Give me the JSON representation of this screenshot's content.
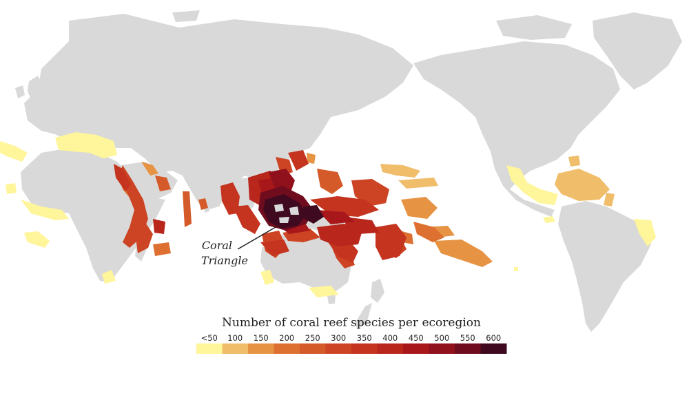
{
  "legend": {
    "title": "Number of coral reef species per ecoregion",
    "labels": [
      "<50",
      "100",
      "150",
      "200",
      "250",
      "300",
      "350",
      "400",
      "450",
      "500",
      "550",
      "600"
    ],
    "colors": [
      "#fff59a",
      "#f0bd6a",
      "#e69344",
      "#dd7030",
      "#d55a29",
      "#cc4424",
      "#c4341f",
      "#b9261c",
      "#a8171a",
      "#90111b",
      "#6f0d1e",
      "#3f0a20"
    ]
  },
  "annotation": {
    "line1": "Coral",
    "line2": "Triangle"
  },
  "colors": {
    "land": "#d9d9d9",
    "background": "#ffffff"
  }
}
